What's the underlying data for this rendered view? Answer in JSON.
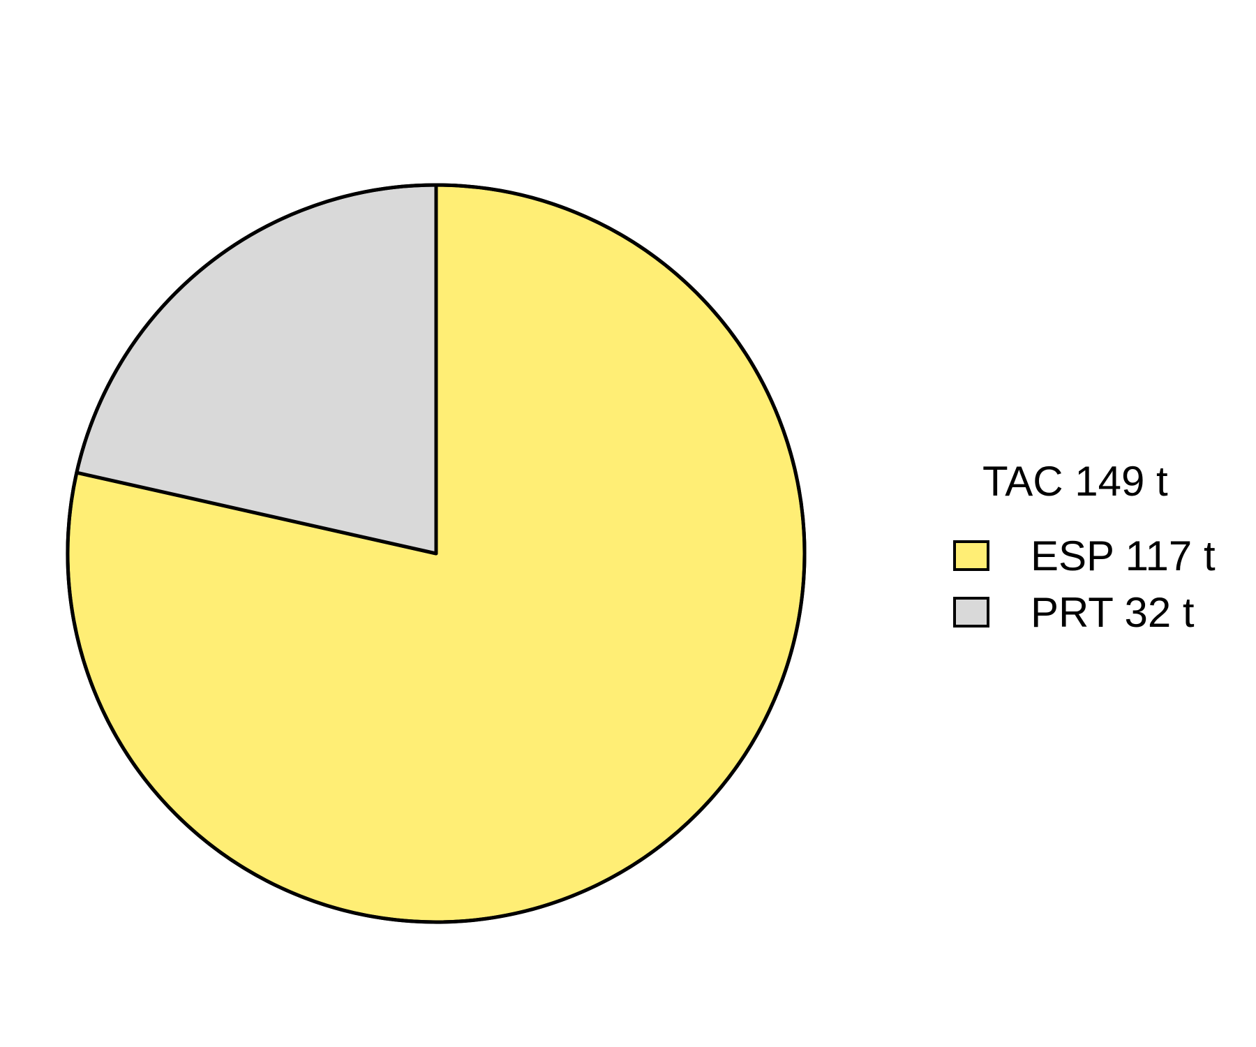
{
  "chart_data": {
    "type": "pie",
    "legend_title": "TAC 149 t",
    "legend_position": "right",
    "start_angle": "top",
    "direction": "clockwise",
    "slices": [
      {
        "label": "ESP 117 t",
        "value": 117,
        "color": "#FFEE75"
      },
      {
        "label": "PRT 32 t",
        "value": 32,
        "color": "#D9D9D9"
      }
    ]
  }
}
